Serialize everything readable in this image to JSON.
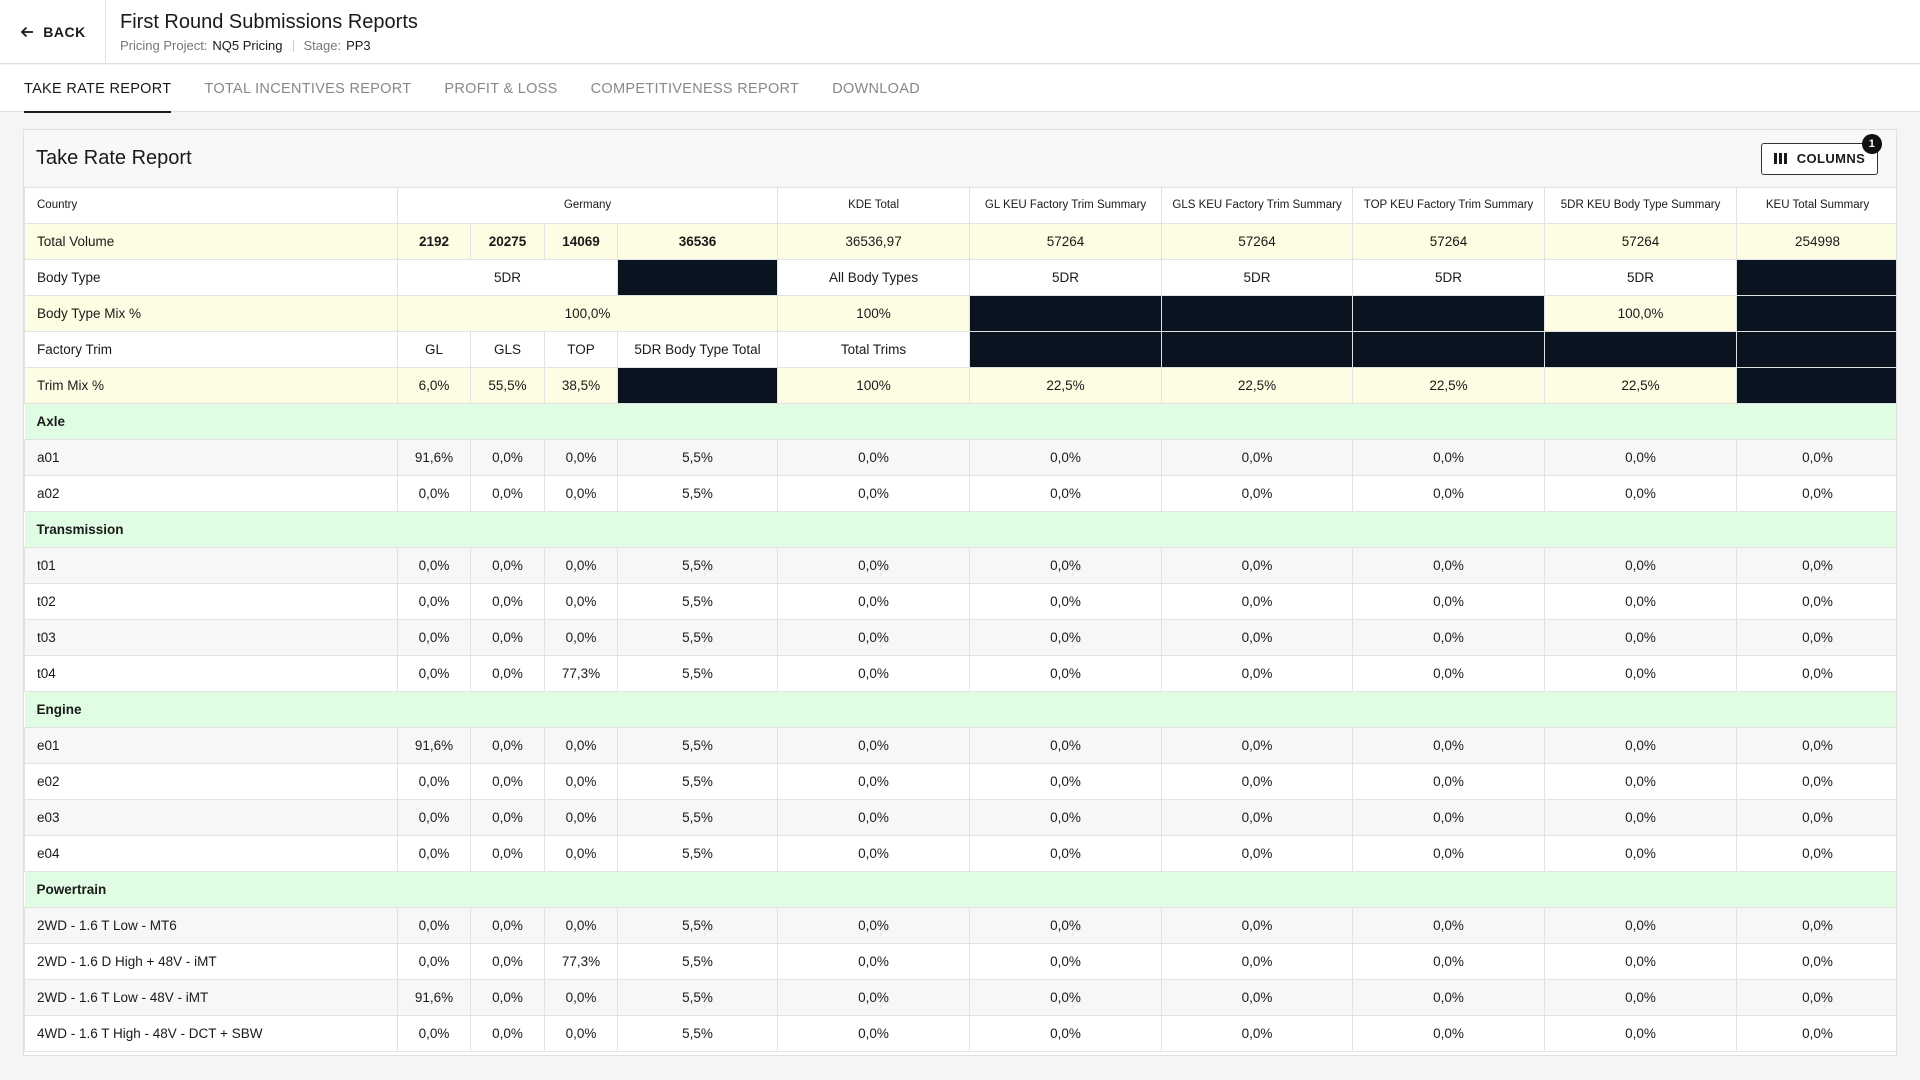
{
  "header": {
    "back_label": "BACK",
    "title": "First Round Submissions Reports",
    "project_label": "Pricing Project:",
    "project_value": "NQ5 Pricing",
    "stage_label": "Stage:",
    "stage_value": "PP3"
  },
  "tabs": [
    {
      "label": "TAKE RATE REPORT",
      "active": true
    },
    {
      "label": "TOTAL INCENTIVES REPORT",
      "active": false
    },
    {
      "label": "PROFIT & LOSS",
      "active": false
    },
    {
      "label": "COMPETITIVENESS REPORT",
      "active": false
    },
    {
      "label": "DOWNLOAD",
      "active": false
    }
  ],
  "report": {
    "title": "Take Rate Report",
    "columns_button": "COLUMNS",
    "columns_badge": "1"
  },
  "table": {
    "header": {
      "country": "Country",
      "germany": "Germany",
      "kde_total": "KDE Total",
      "gl_keu": "GL KEU Factory Trim Summary",
      "gls_keu": "GLS KEU Factory Trim Summary",
      "top_keu": "TOP KEU Factory Trim Summary",
      "body_keu": "5DR KEU Body Type Summary",
      "keu_total": "KEU Total Summary"
    },
    "total_volume": {
      "label": "Total Volume",
      "gl": "2192",
      "gls": "20275",
      "top": "14069",
      "body_total": "36536",
      "kde": "36536,97",
      "gl_keu": "57264",
      "gls_keu": "57264",
      "top_keu": "57264",
      "body_keu": "57264",
      "keu_total": "254998"
    },
    "body_type": {
      "label": "Body Type",
      "germany": "5DR",
      "kde": "All Body Types",
      "gl_keu": "5DR",
      "gls_keu": "5DR",
      "top_keu": "5DR",
      "body_keu": "5DR"
    },
    "body_type_mix": {
      "label": "Body Type Mix %",
      "germany": "100,0%",
      "kde": "100%",
      "body_keu": "100,0%"
    },
    "factory_trim": {
      "label": "Factory Trim",
      "gl": "GL",
      "gls": "GLS",
      "top": "TOP",
      "body_total": "5DR Body Type Total",
      "kde": "Total Trims"
    },
    "trim_mix": {
      "label": "Trim Mix %",
      "gl": "6,0%",
      "gls": "55,5%",
      "top": "38,5%",
      "kde": "100%",
      "gl_keu": "22,5%",
      "gls_keu": "22,5%",
      "top_keu": "22,5%",
      "body_keu": "22,5%"
    },
    "sections": [
      {
        "name": "Axle",
        "rows": [
          {
            "label": "a01",
            "values": [
              "91,6%",
              "0,0%",
              "0,0%",
              "5,5%",
              "0,0%",
              "0,0%",
              "0,0%",
              "0,0%",
              "0,0%",
              "0,0%"
            ]
          },
          {
            "label": "a02",
            "values": [
              "0,0%",
              "0,0%",
              "0,0%",
              "5,5%",
              "0,0%",
              "0,0%",
              "0,0%",
              "0,0%",
              "0,0%",
              "0,0%"
            ]
          }
        ]
      },
      {
        "name": "Transmission",
        "rows": [
          {
            "label": "t01",
            "values": [
              "0,0%",
              "0,0%",
              "0,0%",
              "5,5%",
              "0,0%",
              "0,0%",
              "0,0%",
              "0,0%",
              "0,0%",
              "0,0%"
            ]
          },
          {
            "label": "t02",
            "values": [
              "0,0%",
              "0,0%",
              "0,0%",
              "5,5%",
              "0,0%",
              "0,0%",
              "0,0%",
              "0,0%",
              "0,0%",
              "0,0%"
            ]
          },
          {
            "label": "t03",
            "values": [
              "0,0%",
              "0,0%",
              "0,0%",
              "5,5%",
              "0,0%",
              "0,0%",
              "0,0%",
              "0,0%",
              "0,0%",
              "0,0%"
            ]
          },
          {
            "label": "t04",
            "values": [
              "0,0%",
              "0,0%",
              "77,3%",
              "5,5%",
              "0,0%",
              "0,0%",
              "0,0%",
              "0,0%",
              "0,0%",
              "0,0%"
            ]
          }
        ]
      },
      {
        "name": "Engine",
        "rows": [
          {
            "label": "e01",
            "values": [
              "91,6%",
              "0,0%",
              "0,0%",
              "5,5%",
              "0,0%",
              "0,0%",
              "0,0%",
              "0,0%",
              "0,0%",
              "0,0%"
            ]
          },
          {
            "label": "e02",
            "values": [
              "0,0%",
              "0,0%",
              "0,0%",
              "5,5%",
              "0,0%",
              "0,0%",
              "0,0%",
              "0,0%",
              "0,0%",
              "0,0%"
            ]
          },
          {
            "label": "e03",
            "values": [
              "0,0%",
              "0,0%",
              "0,0%",
              "5,5%",
              "0,0%",
              "0,0%",
              "0,0%",
              "0,0%",
              "0,0%",
              "0,0%"
            ]
          },
          {
            "label": "e04",
            "values": [
              "0,0%",
              "0,0%",
              "0,0%",
              "5,5%",
              "0,0%",
              "0,0%",
              "0,0%",
              "0,0%",
              "0,0%",
              "0,0%"
            ]
          }
        ]
      },
      {
        "name": "Powertrain",
        "rows": [
          {
            "label": "2WD - 1.6 T Low - MT6",
            "values": [
              "0,0%",
              "0,0%",
              "0,0%",
              "5,5%",
              "0,0%",
              "0,0%",
              "0,0%",
              "0,0%",
              "0,0%",
              "0,0%"
            ]
          },
          {
            "label": "2WD - 1.6 D High + 48V - iMT",
            "values": [
              "0,0%",
              "0,0%",
              "77,3%",
              "5,5%",
              "0,0%",
              "0,0%",
              "0,0%",
              "0,0%",
              "0,0%",
              "0,0%"
            ]
          },
          {
            "label": "2WD - 1.6 T Low - 48V - iMT",
            "values": [
              "91,6%",
              "0,0%",
              "0,0%",
              "5,5%",
              "0,0%",
              "0,0%",
              "0,0%",
              "0,0%",
              "0,0%",
              "0,0%"
            ]
          },
          {
            "label": "4WD - 1.6 T High - 48V - DCT + SBW",
            "values": [
              "0,0%",
              "0,0%",
              "0,0%",
              "5,5%",
              "0,0%",
              "0,0%",
              "0,0%",
              "0,0%",
              "0,0%",
              "0,0%"
            ]
          }
        ]
      }
    ]
  }
}
